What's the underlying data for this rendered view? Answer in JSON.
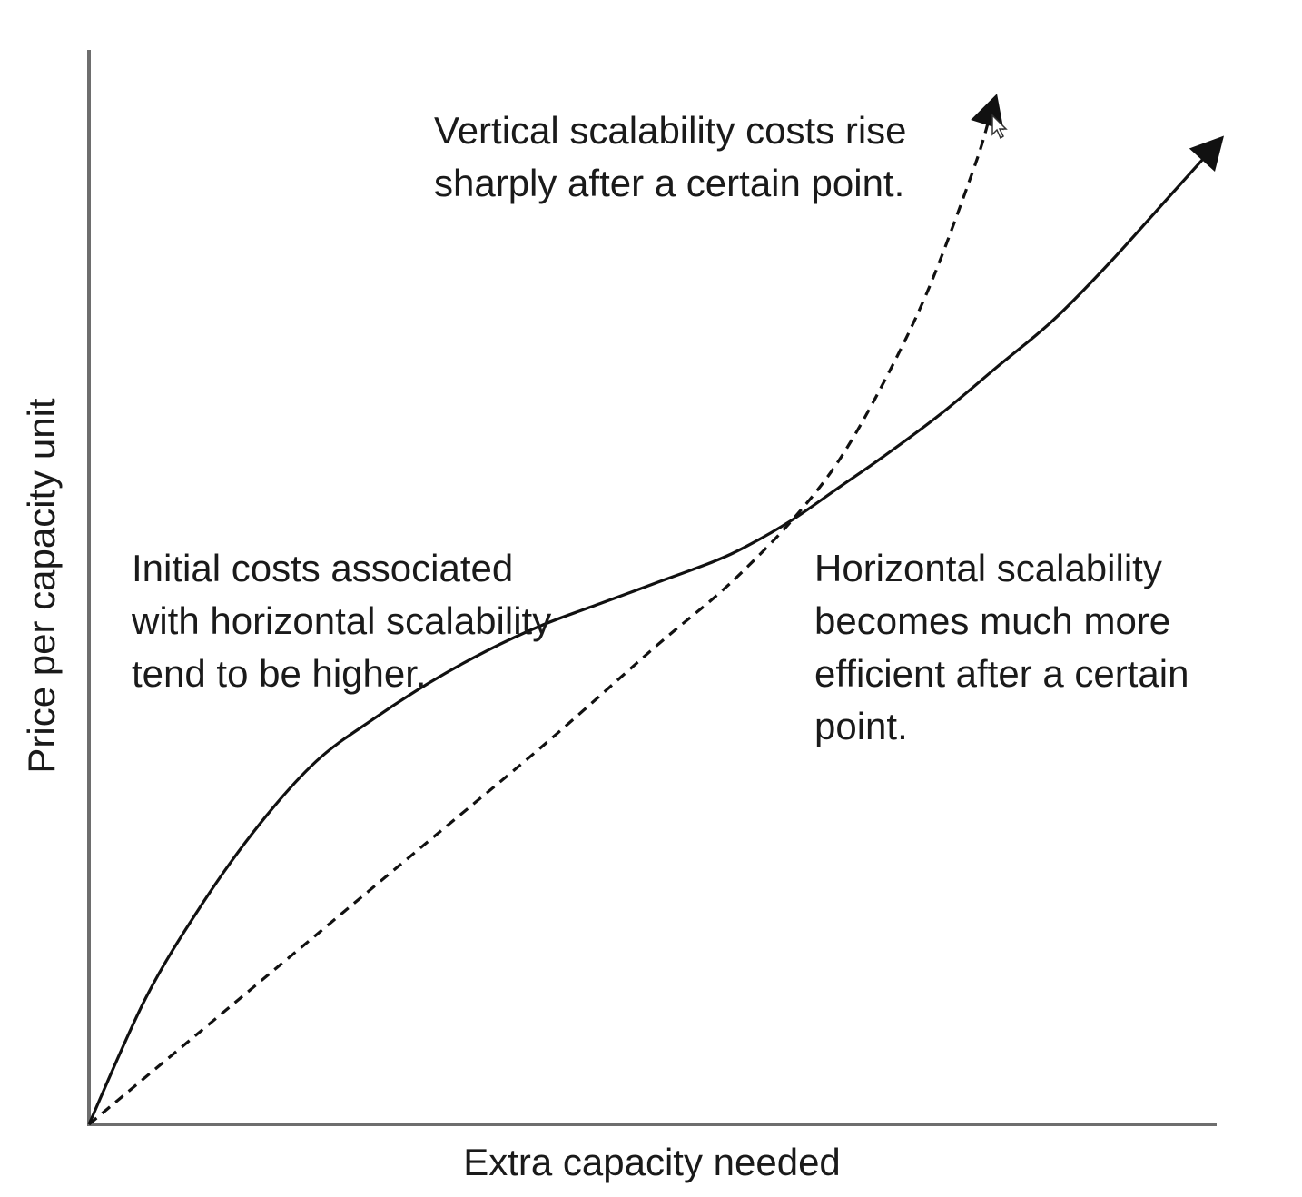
{
  "chart_data": {
    "type": "line",
    "title": "",
    "xlabel": "Extra capacity needed",
    "ylabel": "Price per capacity unit",
    "xlim": [
      0,
      100
    ],
    "ylim": [
      0,
      100
    ],
    "grid": false,
    "legend": "none",
    "series": [
      {
        "style": "solid",
        "x": [
          0,
          5,
          10,
          15,
          20,
          25,
          30,
          35,
          40,
          45,
          50,
          55,
          58,
          62,
          66,
          70,
          75,
          80,
          85,
          90,
          95,
          100
        ],
        "y": [
          0,
          12,
          21,
          28.5,
          34.5,
          38.5,
          42,
          45,
          47.5,
          49.5,
          51.5,
          53.5,
          55,
          57.5,
          60.5,
          63.5,
          67.5,
          72,
          76.5,
          82,
          88,
          94
        ]
      },
      {
        "style": "dashed",
        "x": [
          0,
          10,
          20,
          30,
          40,
          50,
          55,
          58,
          62,
          66,
          70,
          74,
          78,
          80
        ],
        "y": [
          0,
          9,
          18,
          27,
          36,
          45.5,
          50,
          53,
          57.5,
          63,
          70.5,
          79.5,
          91,
          98
        ]
      }
    ],
    "annotations": [
      {
        "id": "vertical",
        "lines": [
          "Vertical scalability costs rise",
          "sharply after a certain point."
        ]
      },
      {
        "id": "initial",
        "lines": [
          "Initial costs associated",
          "with horizontal scalability",
          "tend to be higher."
        ]
      },
      {
        "id": "horizontal",
        "lines": [
          "Horizontal scalability",
          "becomes much more",
          "efficient after a certain",
          "point."
        ]
      }
    ]
  }
}
